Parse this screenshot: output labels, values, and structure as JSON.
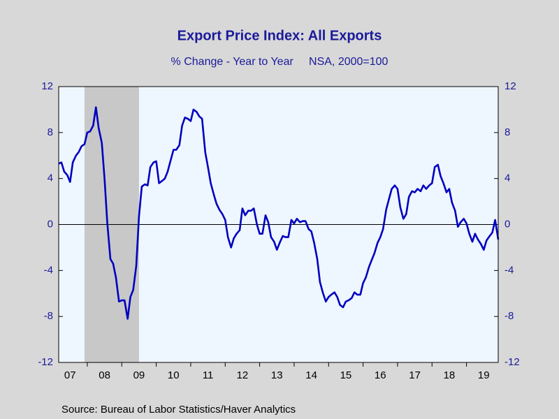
{
  "chart_data": {
    "type": "line",
    "title": "Export Price Index: All Exports",
    "subtitle": "% Change - Year to Year     NSA, 2000=100",
    "source": "Source:  Bureau of Labor Statistics/Haver Analytics",
    "color": "#0000c0",
    "shaded": [
      {
        "start": 2007.92,
        "end": 2009.5
      }
    ],
    "x": [
      2007.17,
      2007.25,
      2007.33,
      2007.42,
      2007.5,
      2007.58,
      2007.67,
      2007.75,
      2007.83,
      2007.92,
      2008,
      2008.08,
      2008.17,
      2008.25,
      2008.33,
      2008.42,
      2008.5,
      2008.58,
      2008.67,
      2008.75,
      2008.83,
      2008.92,
      2009,
      2009.08,
      2009.17,
      2009.25,
      2009.33,
      2009.42,
      2009.5,
      2009.58,
      2009.67,
      2009.75,
      2009.83,
      2009.92,
      2010,
      2010.08,
      2010.17,
      2010.25,
      2010.33,
      2010.42,
      2010.5,
      2010.58,
      2010.67,
      2010.75,
      2010.83,
      2010.92,
      2011,
      2011.08,
      2011.17,
      2011.25,
      2011.33,
      2011.42,
      2011.5,
      2011.58,
      2011.67,
      2011.75,
      2011.83,
      2011.92,
      2012,
      2012.08,
      2012.17,
      2012.25,
      2012.33,
      2012.42,
      2012.5,
      2012.58,
      2012.67,
      2012.75,
      2012.83,
      2012.92,
      2013,
      2013.08,
      2013.17,
      2013.25,
      2013.33,
      2013.42,
      2013.5,
      2013.58,
      2013.67,
      2013.75,
      2013.83,
      2013.92,
      2014,
      2014.08,
      2014.17,
      2014.25,
      2014.33,
      2014.42,
      2014.5,
      2014.58,
      2014.67,
      2014.75,
      2014.83,
      2014.92,
      2015,
      2015.08,
      2015.17,
      2015.25,
      2015.33,
      2015.42,
      2015.5,
      2015.58,
      2015.67,
      2015.75,
      2015.83,
      2015.92,
      2016,
      2016.08,
      2016.17,
      2016.25,
      2016.33,
      2016.42,
      2016.5,
      2016.58,
      2016.67,
      2016.75,
      2016.83,
      2016.92,
      2017,
      2017.08,
      2017.17,
      2017.25,
      2017.33,
      2017.42,
      2017.5,
      2017.58,
      2017.67,
      2017.75,
      2017.83,
      2017.92,
      2018,
      2018.08,
      2018.17,
      2018.25,
      2018.33,
      2018.42,
      2018.5,
      2018.58,
      2018.67,
      2018.75,
      2018.83,
      2018.92,
      2019,
      2019.08,
      2019.17,
      2019.25,
      2019.33,
      2019.42,
      2019.5,
      2019.58,
      2019.67,
      2019.75,
      2019.83,
      2019.92
    ],
    "values": [
      5.3,
      5.4,
      4.6,
      4.3,
      3.7,
      5.4,
      6.0,
      6.3,
      6.8,
      7.0,
      8.0,
      8.1,
      8.6,
      10.2,
      8.4,
      7.1,
      4.0,
      0.1,
      -3.0,
      -3.4,
      -4.6,
      -6.7,
      -6.6,
      -6.6,
      -8.2,
      -6.3,
      -5.7,
      -3.6,
      0.7,
      3.3,
      3.5,
      3.4,
      5.0,
      5.4,
      5.5,
      3.6,
      3.8,
      4.0,
      4.6,
      5.6,
      6.5,
      6.5,
      6.9,
      8.6,
      9.3,
      9.2,
      9.0,
      10.0,
      9.8,
      9.4,
      9.2,
      6.3,
      5.0,
      3.6,
      2.6,
      1.8,
      1.3,
      0.9,
      0.4,
      -1.1,
      -2.0,
      -1.2,
      -0.8,
      -0.5,
      1.4,
      0.8,
      1.2,
      1.2,
      1.4,
      0.0,
      -0.8,
      -0.8,
      0.8,
      0.2,
      -1.1,
      -1.5,
      -2.2,
      -1.6,
      -1.0,
      -1.1,
      -1.1,
      0.4,
      0.1,
      0.5,
      0.2,
      0.3,
      0.3,
      -0.4,
      -0.6,
      -1.6,
      -3.0,
      -5.0,
      -5.9,
      -6.7,
      -6.3,
      -6.1,
      -5.9,
      -6.3,
      -7.0,
      -7.2,
      -6.7,
      -6.6,
      -6.4,
      -5.9,
      -6.1,
      -6.1,
      -5.1,
      -4.6,
      -3.7,
      -3.1,
      -2.5,
      -1.6,
      -1.1,
      -0.4,
      1.3,
      2.2,
      3.1,
      3.4,
      3.1,
      1.5,
      0.5,
      0.9,
      2.4,
      2.9,
      2.8,
      3.1,
      2.9,
      3.4,
      3.1,
      3.4,
      3.6,
      5.0,
      5.2,
      4.2,
      3.6,
      2.8,
      3.1,
      1.9,
      1.2,
      -0.2,
      0.2,
      0.5,
      0.1,
      -0.8,
      -1.5,
      -0.8,
      -1.3,
      -1.7,
      -2.2,
      -1.4,
      -1.0,
      -0.7,
      0.4,
      -1.3
    ],
    "xlim": [
      2007.17,
      2019.92
    ],
    "xticks": [
      {
        "value": 2007,
        "label": "07"
      },
      {
        "value": 2008,
        "label": "08"
      },
      {
        "value": 2009,
        "label": "09"
      },
      {
        "value": 2010,
        "label": "10"
      },
      {
        "value": 2011,
        "label": "11"
      },
      {
        "value": 2012,
        "label": "12"
      },
      {
        "value": 2013,
        "label": "13"
      },
      {
        "value": 2014,
        "label": "14"
      },
      {
        "value": 2015,
        "label": "15"
      },
      {
        "value": 2016,
        "label": "16"
      },
      {
        "value": 2017,
        "label": "17"
      },
      {
        "value": 2018,
        "label": "18"
      },
      {
        "value": 2019,
        "label": "19"
      }
    ],
    "ylim": [
      -12,
      12
    ],
    "yticks": [
      12,
      8,
      4,
      0,
      -4,
      -8,
      -12
    ],
    "y2lim": [
      -12,
      12
    ],
    "y2ticks": [
      12,
      8,
      4,
      0,
      -4,
      -8,
      -12
    ]
  }
}
